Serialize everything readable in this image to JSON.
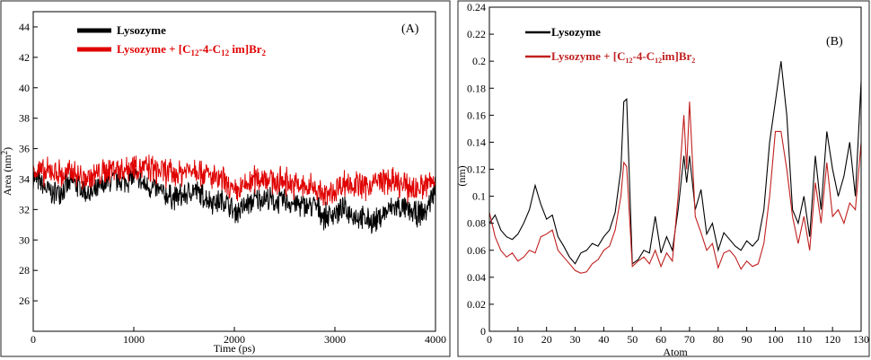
{
  "chart_data": [
    {
      "type": "line",
      "panel_label": "(A)",
      "xlabel": "Time (ps)",
      "ylabel": "Area (nm²)",
      "xlim": [
        0,
        4000
      ],
      "ylim": [
        24,
        45
      ],
      "x_ticks": [
        0,
        1000,
        2000,
        3000,
        4000
      ],
      "y_ticks": [
        26,
        28,
        30,
        32,
        34,
        36,
        38,
        40,
        42,
        44
      ],
      "legend_position": "top-left",
      "series": [
        {
          "name": "Lysozyme",
          "color": "#000000",
          "x": [
            0,
            100,
            200,
            300,
            400,
            500,
            600,
            700,
            800,
            900,
            1000,
            1100,
            1200,
            1300,
            1400,
            1500,
            1600,
            1700,
            1800,
            1900,
            2000,
            2100,
            2200,
            2300,
            2400,
            2500,
            2600,
            2700,
            2800,
            2900,
            3000,
            3100,
            3200,
            3300,
            3400,
            3500,
            3600,
            3700,
            3800,
            3900,
            4000
          ],
          "values": [
            34.2,
            33.5,
            33.0,
            33.4,
            33.8,
            33.2,
            33.0,
            33.6,
            34.0,
            33.8,
            34.2,
            33.6,
            33.4,
            33.0,
            32.8,
            32.9,
            33.3,
            32.8,
            32.5,
            32.6,
            31.8,
            32.2,
            32.6,
            32.8,
            32.5,
            32.6,
            32.4,
            32.2,
            32.3,
            31.5,
            31.8,
            32.0,
            31.6,
            31.3,
            31.2,
            31.8,
            32.2,
            32.0,
            31.7,
            31.8,
            33.5
          ],
          "noise": 0.7
        },
        {
          "name": "Lysozyme + [C12-4-C12 im]Br2",
          "color": "#e00000",
          "x": [
            0,
            100,
            200,
            300,
            400,
            500,
            600,
            700,
            800,
            900,
            1000,
            1100,
            1200,
            1300,
            1400,
            1500,
            1600,
            1700,
            1800,
            1900,
            2000,
            2100,
            2200,
            2300,
            2400,
            2500,
            2600,
            2700,
            2800,
            2900,
            3000,
            3100,
            3200,
            3300,
            3400,
            3500,
            3600,
            3700,
            3800,
            3900,
            4000
          ],
          "values": [
            34.8,
            34.3,
            34.6,
            34.2,
            34.5,
            34.0,
            34.2,
            34.4,
            34.8,
            34.6,
            35.0,
            34.7,
            34.6,
            34.5,
            34.3,
            34.5,
            34.8,
            34.4,
            34.0,
            33.8,
            33.0,
            33.5,
            34.0,
            34.2,
            33.8,
            33.9,
            33.6,
            33.4,
            33.5,
            32.8,
            33.3,
            33.8,
            33.6,
            33.5,
            33.8,
            33.9,
            33.7,
            33.5,
            33.4,
            33.6,
            33.9
          ],
          "noise": 0.8
        }
      ]
    },
    {
      "type": "line",
      "panel_label": "(B)",
      "xlabel": "Atom",
      "ylabel": "(nm)",
      "xlim": [
        0,
        130
      ],
      "ylim": [
        0,
        0.24
      ],
      "x_ticks": [
        0,
        10,
        20,
        30,
        40,
        50,
        60,
        70,
        80,
        90,
        100,
        110,
        120,
        130
      ],
      "y_ticks": [
        0,
        0.02,
        0.04,
        0.06,
        0.08,
        0.1,
        0.12,
        0.14,
        0.16,
        0.18,
        0.2,
        0.22,
        0.24
      ],
      "legend_position": "top-left",
      "series": [
        {
          "name": "Lysozyme",
          "color": "#000000",
          "x": [
            0,
            2,
            4,
            6,
            8,
            10,
            12,
            14,
            16,
            18,
            20,
            22,
            24,
            26,
            28,
            30,
            32,
            34,
            36,
            38,
            40,
            42,
            44,
            46,
            47,
            48,
            50,
            52,
            54,
            56,
            58,
            60,
            62,
            64,
            66,
            68,
            69,
            70,
            72,
            74,
            76,
            78,
            80,
            82,
            84,
            86,
            88,
            90,
            92,
            94,
            96,
            98,
            100,
            102,
            104,
            106,
            108,
            110,
            112,
            114,
            116,
            118,
            120,
            122,
            124,
            126,
            128,
            130
          ],
          "values": [
            0.08,
            0.086,
            0.075,
            0.07,
            0.068,
            0.072,
            0.08,
            0.09,
            0.108,
            0.094,
            0.083,
            0.086,
            0.07,
            0.063,
            0.055,
            0.05,
            0.058,
            0.06,
            0.065,
            0.063,
            0.07,
            0.075,
            0.088,
            0.12,
            0.17,
            0.172,
            0.05,
            0.053,
            0.06,
            0.058,
            0.085,
            0.058,
            0.07,
            0.06,
            0.09,
            0.13,
            0.11,
            0.13,
            0.09,
            0.105,
            0.072,
            0.08,
            0.06,
            0.073,
            0.068,
            0.063,
            0.06,
            0.067,
            0.063,
            0.068,
            0.09,
            0.14,
            0.17,
            0.2,
            0.16,
            0.09,
            0.08,
            0.1,
            0.07,
            0.13,
            0.09,
            0.148,
            0.12,
            0.1,
            0.115,
            0.14,
            0.1,
            0.185
          ]
        },
        {
          "name": "Lysozyme + [C12-4-C12im]Br2",
          "color": "#c02020",
          "x": [
            0,
            2,
            4,
            6,
            8,
            10,
            12,
            14,
            16,
            18,
            20,
            22,
            24,
            26,
            28,
            30,
            32,
            34,
            36,
            38,
            40,
            42,
            44,
            46,
            47,
            48,
            50,
            52,
            54,
            56,
            58,
            60,
            62,
            64,
            66,
            68,
            69,
            70,
            72,
            74,
            76,
            78,
            80,
            82,
            84,
            86,
            88,
            90,
            92,
            94,
            96,
            98,
            100,
            102,
            104,
            106,
            108,
            110,
            112,
            114,
            116,
            118,
            120,
            122,
            124,
            126,
            128,
            130
          ],
          "values": [
            0.088,
            0.07,
            0.06,
            0.055,
            0.058,
            0.052,
            0.055,
            0.06,
            0.058,
            0.07,
            0.072,
            0.075,
            0.06,
            0.055,
            0.05,
            0.045,
            0.043,
            0.044,
            0.05,
            0.053,
            0.06,
            0.063,
            0.075,
            0.1,
            0.125,
            0.122,
            0.048,
            0.052,
            0.055,
            0.05,
            0.06,
            0.048,
            0.058,
            0.052,
            0.1,
            0.16,
            0.12,
            0.17,
            0.085,
            0.073,
            0.06,
            0.065,
            0.047,
            0.058,
            0.06,
            0.055,
            0.046,
            0.052,
            0.048,
            0.05,
            0.065,
            0.1,
            0.148,
            0.148,
            0.12,
            0.085,
            0.065,
            0.085,
            0.06,
            0.11,
            0.08,
            0.125,
            0.085,
            0.09,
            0.08,
            0.095,
            0.09,
            0.14
          ]
        }
      ]
    }
  ],
  "legend_a": {
    "entry1": "Lysozyme",
    "entry2_main": "Lysozyme + [C",
    "entry2_s1": "12",
    "entry2_mid": "-4-C",
    "entry2_s2": "12",
    "entry2_end": " im]Br",
    "entry2_s3": "2"
  },
  "legend_b": {
    "entry1": "Lysozyme",
    "entry2_main": "Lysozyme + [C",
    "entry2_s1": "12",
    "entry2_mid": "-4-C",
    "entry2_s2": "12",
    "entry2_end": "im]Br",
    "entry2_s3": "2"
  },
  "panel_a": {
    "ylabel_main": "Area (nm",
    "ylabel_sup": "2",
    "ylabel_close": ")"
  }
}
